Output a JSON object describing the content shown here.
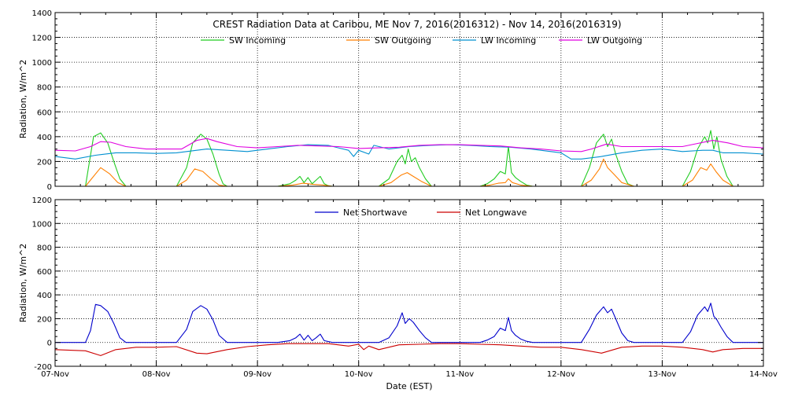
{
  "chart_data": [
    {
      "type": "line",
      "title": "CREST Radiation Data at Caribou, ME   Nov  7, 2016(2016312) - Nov 14, 2016(2016319)",
      "ylabel": "Radiation, W/m^2",
      "xlabel": "",
      "ylim": [
        0,
        1400
      ],
      "yticks": [
        0,
        200,
        400,
        600,
        800,
        1000,
        1200,
        1400
      ],
      "xlim": [
        0,
        7
      ],
      "x_tick_labels": [],
      "grid": true,
      "legend": "top",
      "series": [
        {
          "name": "SW Incoming",
          "color": "#22cc22",
          "x": [
            0,
            0.3,
            0.33,
            0.38,
            0.45,
            0.52,
            0.58,
            0.64,
            0.7,
            1.2,
            1.3,
            1.36,
            1.44,
            1.5,
            1.56,
            1.62,
            1.66,
            1.7,
            2.2,
            2.32,
            2.38,
            2.42,
            2.46,
            2.5,
            2.54,
            2.58,
            2.62,
            2.66,
            2.7,
            2.74,
            3.2,
            3.3,
            3.38,
            3.43,
            3.46,
            3.49,
            3.52,
            3.56,
            3.6,
            3.66,
            3.72,
            4.2,
            4.27,
            4.34,
            4.4,
            4.45,
            4.48,
            4.51,
            4.55,
            4.6,
            4.66,
            4.72,
            5.2,
            5.28,
            5.35,
            5.42,
            5.46,
            5.5,
            5.54,
            5.6,
            5.66,
            5.72,
            6.2,
            6.28,
            6.35,
            6.42,
            6.45,
            6.48,
            6.51,
            6.54,
            6.58,
            6.64,
            6.7,
            7
          ],
          "y": [
            0,
            0,
            150,
            400,
            430,
            350,
            200,
            60,
            0,
            0,
            150,
            350,
            420,
            380,
            260,
            100,
            20,
            0,
            0,
            20,
            50,
            80,
            30,
            70,
            20,
            50,
            80,
            20,
            5,
            0,
            0,
            60,
            200,
            250,
            180,
            300,
            200,
            230,
            150,
            60,
            0,
            0,
            20,
            60,
            120,
            100,
            320,
            110,
            70,
            40,
            10,
            0,
            0,
            150,
            350,
            420,
            320,
            380,
            260,
            120,
            20,
            0,
            0,
            120,
            300,
            400,
            350,
            450,
            300,
            400,
            220,
            80,
            0,
            0
          ]
        },
        {
          "name": "SW Outgoing",
          "color": "#ff8000",
          "x": [
            0,
            0.3,
            0.36,
            0.45,
            0.54,
            0.62,
            0.7,
            1.2,
            1.3,
            1.38,
            1.46,
            1.54,
            1.62,
            1.7,
            2.2,
            2.35,
            2.45,
            2.55,
            2.65,
            2.74,
            3.2,
            3.32,
            3.42,
            3.48,
            3.54,
            3.62,
            3.72,
            4.2,
            4.3,
            4.38,
            4.45,
            4.48,
            4.52,
            4.6,
            4.72,
            5.2,
            5.3,
            5.38,
            5.42,
            5.46,
            5.52,
            5.6,
            5.72,
            6.2,
            6.3,
            6.38,
            6.44,
            6.48,
            6.53,
            6.6,
            6.7,
            7
          ],
          "y": [
            0,
            0,
            60,
            150,
            100,
            30,
            0,
            0,
            50,
            140,
            120,
            60,
            10,
            0,
            0,
            10,
            25,
            15,
            10,
            0,
            0,
            30,
            90,
            110,
            80,
            40,
            0,
            0,
            10,
            25,
            30,
            60,
            30,
            10,
            0,
            0,
            50,
            140,
            220,
            150,
            100,
            30,
            0,
            0,
            50,
            150,
            130,
            180,
            120,
            50,
            0,
            0
          ]
        },
        {
          "name": "LW Incoming",
          "color": "#0090d0",
          "x": [
            0,
            0.2,
            0.4,
            0.6,
            0.8,
            1.0,
            1.2,
            1.4,
            1.5,
            1.7,
            1.9,
            2.1,
            2.3,
            2.5,
            2.7,
            2.8,
            2.9,
            2.95,
            3.0,
            3.1,
            3.15,
            3.3,
            3.5,
            3.7,
            3.9,
            4.1,
            4.3,
            4.5,
            4.7,
            4.9,
            5.0,
            5.1,
            5.2,
            5.4,
            5.6,
            5.8,
            6.0,
            6.2,
            6.4,
            6.5,
            6.6,
            6.8,
            7
          ],
          "y": [
            240,
            220,
            250,
            270,
            270,
            265,
            270,
            290,
            300,
            290,
            280,
            300,
            320,
            335,
            330,
            310,
            290,
            240,
            290,
            260,
            330,
            300,
            320,
            330,
            335,
            330,
            320,
            315,
            300,
            280,
            270,
            220,
            220,
            240,
            270,
            290,
            300,
            280,
            290,
            290,
            270,
            270,
            260
          ]
        },
        {
          "name": "LW Outgoing",
          "color": "#e000e0",
          "x": [
            0,
            0.2,
            0.35,
            0.45,
            0.55,
            0.7,
            0.9,
            1.1,
            1.25,
            1.4,
            1.5,
            1.6,
            1.8,
            2.0,
            2.2,
            2.4,
            2.6,
            2.8,
            3.0,
            3.2,
            3.4,
            3.6,
            3.8,
            4.0,
            4.2,
            4.4,
            4.6,
            4.8,
            5.0,
            5.2,
            5.3,
            5.45,
            5.6,
            5.8,
            6.0,
            6.2,
            6.35,
            6.5,
            6.65,
            6.8,
            7
          ],
          "y": [
            290,
            285,
            320,
            360,
            355,
            320,
            300,
            300,
            300,
            370,
            385,
            360,
            320,
            310,
            320,
            330,
            325,
            320,
            305,
            310,
            315,
            330,
            335,
            335,
            330,
            325,
            310,
            300,
            285,
            280,
            300,
            340,
            320,
            320,
            320,
            320,
            345,
            370,
            350,
            320,
            310
          ]
        }
      ]
    },
    {
      "type": "line",
      "title": "",
      "ylabel": "Radiation, W/m^2",
      "xlabel": "Date (EST)",
      "ylim": [
        -200,
        1200
      ],
      "yticks": [
        -200,
        0,
        200,
        400,
        600,
        800,
        1000,
        1200
      ],
      "xlim": [
        0,
        7
      ],
      "x_tick_labels": [
        "07-Nov",
        "08-Nov",
        "09-Nov",
        "10-Nov",
        "11-Nov",
        "12-Nov",
        "13-Nov",
        "14-Nov"
      ],
      "grid": true,
      "legend": "top",
      "series": [
        {
          "name": "Net Shortwave",
          "color": "#0000cc",
          "x": [
            0,
            0.3,
            0.35,
            0.4,
            0.45,
            0.52,
            0.58,
            0.64,
            0.7,
            1.2,
            1.3,
            1.36,
            1.44,
            1.5,
            1.56,
            1.62,
            1.7,
            2.2,
            2.32,
            2.38,
            2.42,
            2.46,
            2.5,
            2.54,
            2.58,
            2.62,
            2.66,
            2.74,
            3.2,
            3.3,
            3.38,
            3.43,
            3.46,
            3.5,
            3.54,
            3.6,
            3.66,
            3.72,
            4.2,
            4.27,
            4.34,
            4.4,
            4.45,
            4.48,
            4.51,
            4.55,
            4.6,
            4.66,
            4.72,
            5.2,
            5.28,
            5.35,
            5.42,
            5.46,
            5.5,
            5.54,
            5.6,
            5.66,
            5.72,
            6.2,
            6.28,
            6.35,
            6.42,
            6.45,
            6.48,
            6.51,
            6.54,
            6.58,
            6.64,
            6.7,
            7
          ],
          "y": [
            0,
            0,
            100,
            320,
            310,
            260,
            160,
            40,
            0,
            0,
            110,
            260,
            310,
            280,
            190,
            60,
            0,
            0,
            15,
            40,
            70,
            20,
            60,
            15,
            40,
            70,
            15,
            0,
            0,
            40,
            140,
            250,
            160,
            200,
            170,
            100,
            40,
            0,
            0,
            20,
            50,
            120,
            100,
            210,
            100,
            60,
            30,
            10,
            0,
            0,
            110,
            230,
            300,
            250,
            280,
            200,
            80,
            15,
            0,
            0,
            90,
            230,
            300,
            260,
            330,
            220,
            190,
            130,
            50,
            0,
            0
          ]
        },
        {
          "name": "Net Longwave",
          "color": "#cc0000",
          "x": [
            0,
            0.3,
            0.45,
            0.6,
            0.8,
            1.0,
            1.2,
            1.4,
            1.5,
            1.7,
            1.9,
            2.1,
            2.3,
            2.5,
            2.7,
            2.9,
            3.0,
            3.05,
            3.1,
            3.2,
            3.4,
            3.6,
            3.8,
            4.0,
            4.2,
            4.4,
            4.6,
            4.8,
            5.0,
            5.2,
            5.4,
            5.6,
            5.8,
            6.0,
            6.2,
            6.4,
            6.5,
            6.6,
            6.8,
            7
          ],
          "y": [
            -60,
            -70,
            -110,
            -60,
            -40,
            -40,
            -35,
            -90,
            -95,
            -60,
            -35,
            -20,
            -10,
            -10,
            -10,
            -30,
            -15,
            -60,
            -30,
            -60,
            -20,
            -15,
            -10,
            -10,
            -15,
            -20,
            -30,
            -40,
            -40,
            -60,
            -90,
            -40,
            -30,
            -30,
            -40,
            -60,
            -80,
            -60,
            -50,
            -50
          ]
        }
      ]
    }
  ]
}
